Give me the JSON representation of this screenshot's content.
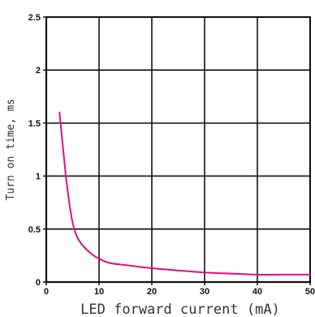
{
  "chart_data": {
    "type": "line",
    "title": "",
    "xlabel": "LED forward current (mA)",
    "ylabel": "Turn on time, ms",
    "xlim": [
      0,
      50
    ],
    "ylim": [
      0,
      2.5
    ],
    "x_ticks": [
      0,
      10,
      20,
      30,
      40,
      50
    ],
    "y_ticks": [
      0,
      0.5,
      1,
      1.5,
      2,
      2.5
    ],
    "x_tick_labels": [
      "0",
      "10",
      "20",
      "30",
      "40",
      "50"
    ],
    "y_tick_labels": [
      "0",
      "0.5",
      "1",
      "1.5",
      "2",
      "2.5"
    ],
    "grid": true,
    "series": [
      {
        "color": "#e0107e",
        "x": [
          2.5,
          3,
          3.5,
          4,
          4.5,
          5,
          5.5,
          6,
          7,
          8,
          9,
          10,
          12,
          15,
          20,
          25,
          30,
          35,
          40,
          45,
          50
        ],
        "y": [
          1.6,
          1.35,
          1.1,
          0.88,
          0.7,
          0.56,
          0.47,
          0.41,
          0.34,
          0.29,
          0.25,
          0.22,
          0.18,
          0.16,
          0.13,
          0.11,
          0.09,
          0.08,
          0.07,
          0.07,
          0.07
        ]
      }
    ]
  }
}
